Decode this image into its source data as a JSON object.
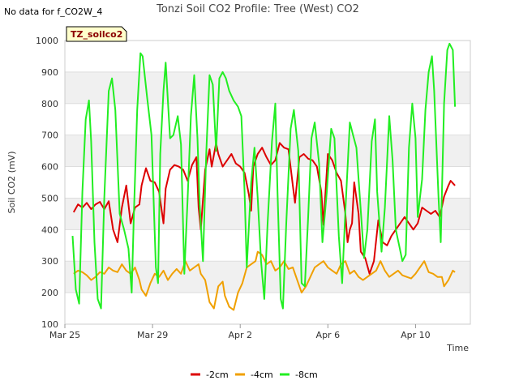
{
  "nodata_text": "No data for f_CO2W_4",
  "chart_data": {
    "type": "line",
    "title": "Tonzi Soil CO2 Profile: Tree (West) CO2",
    "xlabel": "Time",
    "ylabel": "Soil CO2 (mV)",
    "ylim": [
      100,
      1000
    ],
    "xlim": [
      0,
      18.5
    ],
    "yticks": [
      100,
      200,
      300,
      400,
      500,
      600,
      700,
      800,
      900,
      1000
    ],
    "xticks": [
      {
        "day": 0,
        "label": "Mar 25"
      },
      {
        "day": 4,
        "label": "Mar 29"
      },
      {
        "day": 8,
        "label": "Apr 2"
      },
      {
        "day": 12,
        "label": "Apr 6"
      },
      {
        "day": 16,
        "label": "Apr 10"
      }
    ],
    "tag_label": "TZ_soilco2",
    "legend": [
      "-2cm",
      "-4cm",
      "-8cm"
    ],
    "series": [
      {
        "name": "-2cm",
        "color": "#dd0000",
        "points": [
          [
            0.4,
            455
          ],
          [
            0.6,
            480
          ],
          [
            0.8,
            470
          ],
          [
            1.0,
            485
          ],
          [
            1.2,
            465
          ],
          [
            1.4,
            480
          ],
          [
            1.6,
            488
          ],
          [
            1.8,
            465
          ],
          [
            2.0,
            490
          ],
          [
            2.2,
            400
          ],
          [
            2.4,
            360
          ],
          [
            2.6,
            470
          ],
          [
            2.8,
            540
          ],
          [
            3.0,
            420
          ],
          [
            3.2,
            470
          ],
          [
            3.4,
            480
          ],
          [
            3.5,
            540
          ],
          [
            3.7,
            595
          ],
          [
            3.9,
            555
          ],
          [
            4.1,
            550
          ],
          [
            4.3,
            520
          ],
          [
            4.5,
            420
          ],
          [
            4.6,
            530
          ],
          [
            4.8,
            590
          ],
          [
            5.0,
            605
          ],
          [
            5.2,
            600
          ],
          [
            5.4,
            590
          ],
          [
            5.6,
            555
          ],
          [
            5.8,
            605
          ],
          [
            6.0,
            630
          ],
          [
            6.1,
            470
          ],
          [
            6.2,
            400
          ],
          [
            6.4,
            590
          ],
          [
            6.6,
            655
          ],
          [
            6.7,
            600
          ],
          [
            6.9,
            675
          ],
          [
            7.0,
            640
          ],
          [
            7.2,
            600
          ],
          [
            7.4,
            620
          ],
          [
            7.6,
            640
          ],
          [
            7.8,
            610
          ],
          [
            8.0,
            600
          ],
          [
            8.2,
            580
          ],
          [
            8.4,
            510
          ],
          [
            8.5,
            460
          ],
          [
            8.6,
            600
          ],
          [
            8.8,
            640
          ],
          [
            9.0,
            660
          ],
          [
            9.2,
            630
          ],
          [
            9.4,
            605
          ],
          [
            9.6,
            620
          ],
          [
            9.8,
            675
          ],
          [
            10.0,
            660
          ],
          [
            10.2,
            655
          ],
          [
            10.4,
            540
          ],
          [
            10.5,
            485
          ],
          [
            10.7,
            630
          ],
          [
            10.9,
            640
          ],
          [
            11.1,
            625
          ],
          [
            11.3,
            620
          ],
          [
            11.5,
            600
          ],
          [
            11.7,
            520
          ],
          [
            11.8,
            415
          ],
          [
            12.0,
            640
          ],
          [
            12.2,
            620
          ],
          [
            12.4,
            580
          ],
          [
            12.6,
            555
          ],
          [
            12.8,
            450
          ],
          [
            12.9,
            360
          ],
          [
            13.0,
            400
          ],
          [
            13.1,
            420
          ],
          [
            13.2,
            550
          ],
          [
            13.4,
            450
          ],
          [
            13.5,
            330
          ],
          [
            13.7,
            310
          ],
          [
            13.9,
            260
          ],
          [
            14.1,
            300
          ],
          [
            14.3,
            430
          ],
          [
            14.5,
            360
          ],
          [
            14.7,
            350
          ],
          [
            14.9,
            380
          ],
          [
            15.1,
            400
          ],
          [
            15.3,
            420
          ],
          [
            15.5,
            440
          ],
          [
            15.7,
            420
          ],
          [
            15.9,
            400
          ],
          [
            16.1,
            420
          ],
          [
            16.3,
            470
          ],
          [
            16.5,
            460
          ],
          [
            16.7,
            450
          ],
          [
            16.9,
            460
          ],
          [
            17.1,
            440
          ],
          [
            17.3,
            505
          ],
          [
            17.5,
            540
          ],
          [
            17.6,
            555
          ],
          [
            17.8,
            540
          ]
        ]
      },
      {
        "name": "-4cm",
        "color": "#f0a000",
        "points": [
          [
            0.4,
            260
          ],
          [
            0.6,
            270
          ],
          [
            0.8,
            265
          ],
          [
            1.0,
            255
          ],
          [
            1.2,
            240
          ],
          [
            1.4,
            250
          ],
          [
            1.6,
            265
          ],
          [
            1.8,
            260
          ],
          [
            2.0,
            280
          ],
          [
            2.2,
            270
          ],
          [
            2.4,
            265
          ],
          [
            2.6,
            290
          ],
          [
            2.8,
            270
          ],
          [
            3.0,
            260
          ],
          [
            3.2,
            280
          ],
          [
            3.4,
            240
          ],
          [
            3.5,
            210
          ],
          [
            3.7,
            190
          ],
          [
            3.9,
            230
          ],
          [
            4.1,
            260
          ],
          [
            4.3,
            250
          ],
          [
            4.5,
            270
          ],
          [
            4.7,
            240
          ],
          [
            4.9,
            260
          ],
          [
            5.1,
            275
          ],
          [
            5.3,
            260
          ],
          [
            5.5,
            300
          ],
          [
            5.7,
            270
          ],
          [
            5.9,
            280
          ],
          [
            6.1,
            290
          ],
          [
            6.2,
            260
          ],
          [
            6.4,
            240
          ],
          [
            6.6,
            170
          ],
          [
            6.8,
            150
          ],
          [
            7.0,
            220
          ],
          [
            7.2,
            235
          ],
          [
            7.3,
            190
          ],
          [
            7.5,
            155
          ],
          [
            7.7,
            145
          ],
          [
            7.9,
            200
          ],
          [
            8.1,
            230
          ],
          [
            8.3,
            280
          ],
          [
            8.5,
            290
          ],
          [
            8.7,
            300
          ],
          [
            8.8,
            330
          ],
          [
            9.0,
            320
          ],
          [
            9.2,
            290
          ],
          [
            9.4,
            300
          ],
          [
            9.6,
            270
          ],
          [
            9.8,
            280
          ],
          [
            10.0,
            300
          ],
          [
            10.2,
            275
          ],
          [
            10.4,
            280
          ],
          [
            10.6,
            240
          ],
          [
            10.8,
            200
          ],
          [
            11.0,
            220
          ],
          [
            11.2,
            250
          ],
          [
            11.4,
            280
          ],
          [
            11.6,
            290
          ],
          [
            11.8,
            300
          ],
          [
            12.0,
            280
          ],
          [
            12.2,
            270
          ],
          [
            12.4,
            260
          ],
          [
            12.6,
            290
          ],
          [
            12.8,
            300
          ],
          [
            13.0,
            260
          ],
          [
            13.2,
            270
          ],
          [
            13.4,
            250
          ],
          [
            13.6,
            240
          ],
          [
            13.8,
            250
          ],
          [
            14.0,
            260
          ],
          [
            14.2,
            270
          ],
          [
            14.4,
            300
          ],
          [
            14.6,
            270
          ],
          [
            14.8,
            250
          ],
          [
            15.0,
            260
          ],
          [
            15.2,
            270
          ],
          [
            15.4,
            255
          ],
          [
            15.6,
            250
          ],
          [
            15.8,
            245
          ],
          [
            16.0,
            260
          ],
          [
            16.2,
            280
          ],
          [
            16.4,
            300
          ],
          [
            16.6,
            265
          ],
          [
            16.8,
            260
          ],
          [
            17.0,
            250
          ],
          [
            17.2,
            250
          ],
          [
            17.3,
            220
          ],
          [
            17.5,
            240
          ],
          [
            17.7,
            270
          ],
          [
            17.8,
            265
          ]
        ]
      },
      {
        "name": "-8cm",
        "color": "#22ee22",
        "points": [
          [
            0.35,
            380
          ],
          [
            0.5,
            210
          ],
          [
            0.65,
            165
          ],
          [
            0.8,
            520
          ],
          [
            0.95,
            750
          ],
          [
            1.1,
            810
          ],
          [
            1.2,
            680
          ],
          [
            1.35,
            360
          ],
          [
            1.5,
            180
          ],
          [
            1.65,
            150
          ],
          [
            1.8,
            500
          ],
          [
            2.0,
            840
          ],
          [
            2.15,
            880
          ],
          [
            2.3,
            780
          ],
          [
            2.5,
            450
          ],
          [
            2.7,
            400
          ],
          [
            2.9,
            340
          ],
          [
            3.05,
            200
          ],
          [
            3.15,
            450
          ],
          [
            3.3,
            780
          ],
          [
            3.45,
            960
          ],
          [
            3.55,
            950
          ],
          [
            3.75,
            820
          ],
          [
            3.95,
            700
          ],
          [
            4.15,
            280
          ],
          [
            4.25,
            230
          ],
          [
            4.35,
            640
          ],
          [
            4.5,
            840
          ],
          [
            4.6,
            930
          ],
          [
            4.8,
            690
          ],
          [
            4.95,
            700
          ],
          [
            5.15,
            760
          ],
          [
            5.3,
            670
          ],
          [
            5.45,
            260
          ],
          [
            5.6,
            500
          ],
          [
            5.75,
            760
          ],
          [
            5.9,
            890
          ],
          [
            6.05,
            690
          ],
          [
            6.15,
            480
          ],
          [
            6.3,
            300
          ],
          [
            6.45,
            640
          ],
          [
            6.6,
            890
          ],
          [
            6.75,
            860
          ],
          [
            6.9,
            650
          ],
          [
            7.05,
            880
          ],
          [
            7.2,
            900
          ],
          [
            7.35,
            880
          ],
          [
            7.5,
            840
          ],
          [
            7.7,
            810
          ],
          [
            7.9,
            790
          ],
          [
            8.05,
            760
          ],
          [
            8.2,
            520
          ],
          [
            8.3,
            280
          ],
          [
            8.5,
            550
          ],
          [
            8.65,
            660
          ],
          [
            8.8,
            500
          ],
          [
            8.95,
            300
          ],
          [
            9.1,
            180
          ],
          [
            9.25,
            420
          ],
          [
            9.45,
            680
          ],
          [
            9.6,
            800
          ],
          [
            9.7,
            520
          ],
          [
            9.85,
            180
          ],
          [
            9.95,
            150
          ],
          [
            10.1,
            420
          ],
          [
            10.3,
            720
          ],
          [
            10.45,
            780
          ],
          [
            10.65,
            650
          ],
          [
            10.8,
            230
          ],
          [
            10.95,
            220
          ],
          [
            11.1,
            440
          ],
          [
            11.25,
            690
          ],
          [
            11.4,
            740
          ],
          [
            11.6,
            610
          ],
          [
            11.75,
            360
          ],
          [
            11.95,
            520
          ],
          [
            12.15,
            720
          ],
          [
            12.3,
            690
          ],
          [
            12.5,
            380
          ],
          [
            12.65,
            230
          ],
          [
            12.8,
            460
          ],
          [
            13.0,
            740
          ],
          [
            13.15,
            700
          ],
          [
            13.3,
            660
          ],
          [
            13.5,
            460
          ],
          [
            13.65,
            310
          ],
          [
            13.8,
            400
          ],
          [
            14.0,
            680
          ],
          [
            14.15,
            750
          ],
          [
            14.25,
            520
          ],
          [
            14.45,
            330
          ],
          [
            14.6,
            470
          ],
          [
            14.8,
            760
          ],
          [
            14.95,
            620
          ],
          [
            15.1,
            400
          ],
          [
            15.25,
            350
          ],
          [
            15.4,
            300
          ],
          [
            15.55,
            320
          ],
          [
            15.7,
            660
          ],
          [
            15.85,
            800
          ],
          [
            16.0,
            690
          ],
          [
            16.1,
            440
          ],
          [
            16.3,
            560
          ],
          [
            16.45,
            780
          ],
          [
            16.6,
            900
          ],
          [
            16.75,
            950
          ],
          [
            16.85,
            840
          ],
          [
            17.05,
            500
          ],
          [
            17.15,
            360
          ],
          [
            17.3,
            800
          ],
          [
            17.45,
            970
          ],
          [
            17.55,
            990
          ],
          [
            17.7,
            970
          ],
          [
            17.8,
            790
          ]
        ]
      }
    ]
  }
}
